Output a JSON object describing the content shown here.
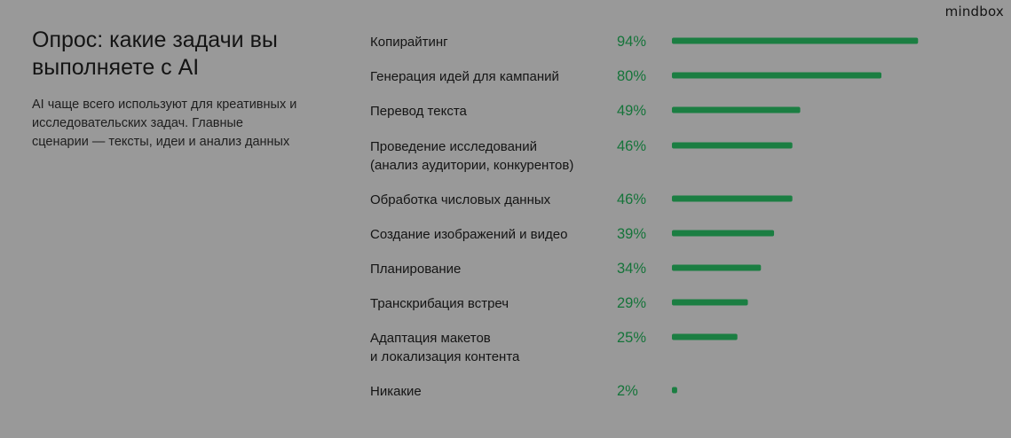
{
  "brand": {
    "logo": "mindbox"
  },
  "header": {
    "title": "Опрос: какие задачи вы выполняете с AI",
    "subtitle": "AI чаще всего используют для креативных и исследовательских задач. Главные сценарии — тексты, идеи и анализ данных"
  },
  "colors": {
    "bar": "#1b7e42",
    "value_text": "#15743a",
    "background": "#999999"
  },
  "chart_data": {
    "type": "bar",
    "orientation": "horizontal",
    "categories": [
      [
        "Копирайтинг"
      ],
      [
        "Генерация идей для кампаний"
      ],
      [
        "Перевод текста"
      ],
      [
        "Проведение исследований",
        "(анализ аудитории, конкурентов)"
      ],
      [
        "Обработка числовых данных"
      ],
      [
        "Создание изображений и видео"
      ],
      [
        "Планирование"
      ],
      [
        "Транскрибация встреч"
      ],
      [
        "Адаптация макетов",
        "и локализация контента"
      ],
      [
        "Никакие"
      ]
    ],
    "values": [
      94,
      80,
      49,
      46,
      46,
      39,
      34,
      29,
      25,
      2
    ],
    "value_labels": [
      "94%",
      "80%",
      "49%",
      "46%",
      "46%",
      "39%",
      "34%",
      "29%",
      "25%",
      "2%"
    ],
    "unit": "%",
    "xlim": [
      0,
      100
    ],
    "grid": false,
    "legend": "none"
  }
}
